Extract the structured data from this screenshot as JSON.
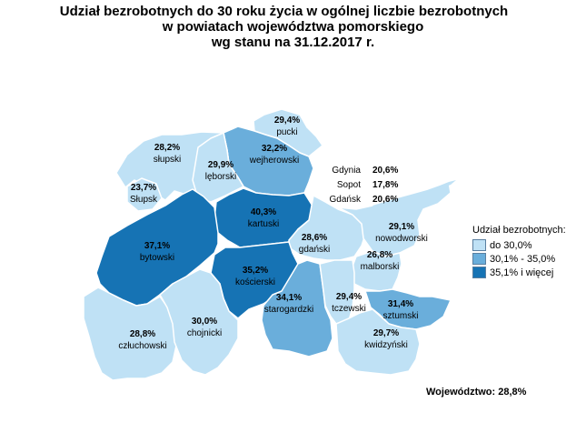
{
  "title": {
    "line1": "Udział bezrobotnych do 30 roku życia w ogólnej liczbie bezrobotnych",
    "line2": "w powiatach województwa pomorskiego",
    "line3": "wg stanu na 31.12.2017 r."
  },
  "colors": {
    "low": "#bfe1f5",
    "mid": "#6aaedb",
    "high": "#1673b4",
    "border": "#ffffff"
  },
  "legend": {
    "title": "Udział bezrobotnych:",
    "items": [
      {
        "label": "do 30,0%",
        "class": "low"
      },
      {
        "label": "30,1% - 35,0%",
        "class": "mid"
      },
      {
        "label": "35,1% i więcej",
        "class": "high"
      }
    ]
  },
  "districts": [
    {
      "name": "pucki",
      "value": "29,4%",
      "class": "low"
    },
    {
      "name": "wejherowski",
      "value": "32,2%",
      "class": "mid"
    },
    {
      "name": "słupski",
      "value": "28,2%",
      "class": "low"
    },
    {
      "name": "lęborski",
      "value": "29,9%",
      "class": "low"
    },
    {
      "name": "Słupsk",
      "value": "23,7%",
      "class": "low"
    },
    {
      "name": "kartuski",
      "value": "40,3%",
      "class": "high"
    },
    {
      "name": "bytowski",
      "value": "37,1%",
      "class": "high"
    },
    {
      "name": "gdański",
      "value": "28,6%",
      "class": "low"
    },
    {
      "name": "nowodworski",
      "value": "29,1%",
      "class": "low"
    },
    {
      "name": "kościerski",
      "value": "35,2%",
      "class": "high"
    },
    {
      "name": "malborski",
      "value": "26,8%",
      "class": "low"
    },
    {
      "name": "starogardzki",
      "value": "34,1%",
      "class": "mid"
    },
    {
      "name": "tczewski",
      "value": "29,4%",
      "class": "low"
    },
    {
      "name": "sztumski",
      "value": "31,4%",
      "class": "mid"
    },
    {
      "name": "człuchowski",
      "value": "28,8%",
      "class": "low"
    },
    {
      "name": "chojnicki",
      "value": "30,0%",
      "class": "low"
    },
    {
      "name": "kwidzyński",
      "value": "29,7%",
      "class": "low"
    }
  ],
  "cities": [
    {
      "name": "Gdynia",
      "value": "20,6%"
    },
    {
      "name": "Sopot",
      "value": "17,8%"
    },
    {
      "name": "Gdańsk",
      "value": "20,6%"
    }
  ],
  "total": "Województwo: 28,8%"
}
